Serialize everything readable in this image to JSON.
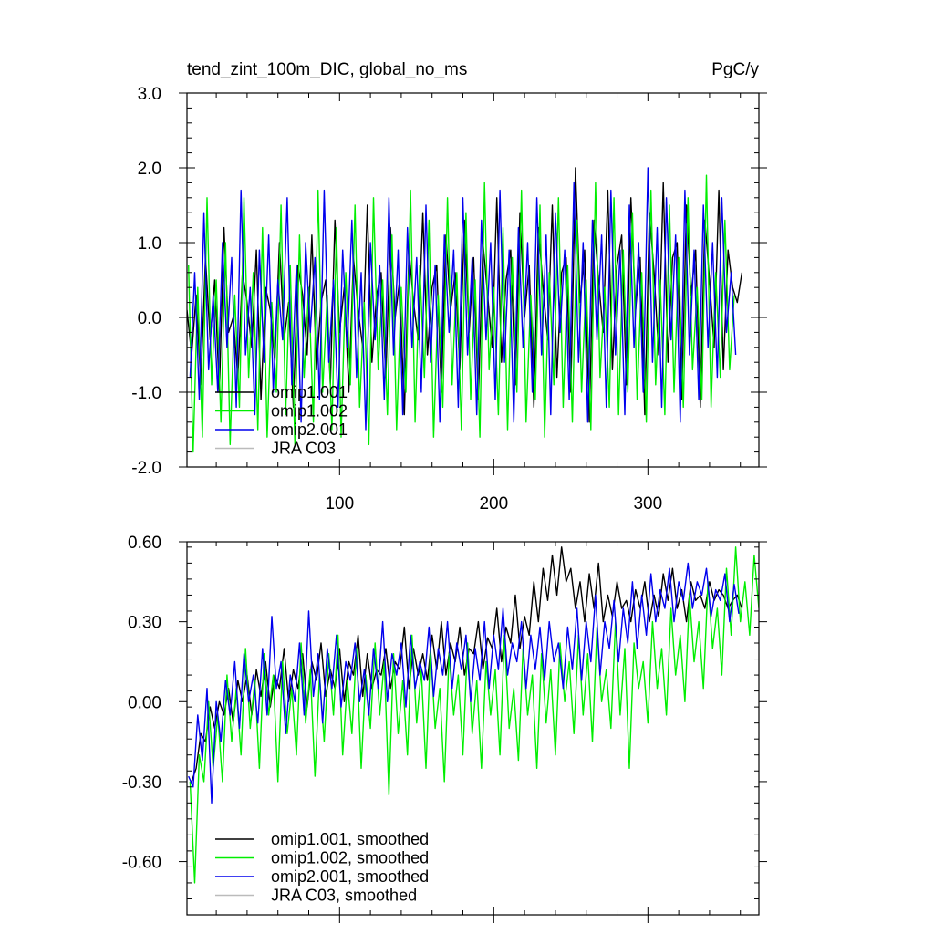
{
  "chart_data": [
    {
      "type": "line",
      "title": "tend_zint_100m_DIC, global_no_ms",
      "units": "PgC/y",
      "xlim": [
        1,
        372
      ],
      "ylim": [
        -2.0,
        3.0
      ],
      "x_ticks": [
        100,
        200,
        300
      ],
      "x_tick_labels": [
        "100",
        "200",
        "300"
      ],
      "y_ticks": [
        -2.0,
        -1.0,
        0.0,
        1.0,
        2.0,
        3.0
      ],
      "y_tick_labels": [
        "-2.0",
        "-1.0",
        "0.0",
        "1.0",
        "2.0",
        "3.0"
      ],
      "legend_position": "bottom-left",
      "series": [
        {
          "name": "omip1.001",
          "color": "#000000",
          "x_start": 1,
          "x_step": 3,
          "values": [
            0.1,
            -0.5,
            0.3,
            -0.9,
            0.8,
            -0.3,
            0.5,
            -1.0,
            1.2,
            -0.2,
            0.0,
            -0.8,
            0.6,
            0.2,
            -0.4,
            0.9,
            -1.1,
            0.4,
            0.1,
            -0.6,
            1.0,
            -0.3,
            0.2,
            -1.2,
            0.7,
            0.3,
            -0.5,
            1.1,
            -0.7,
            0.2,
            0.5,
            -0.9,
            1.3,
            -0.2,
            0.4,
            -1.0,
            0.8,
            0.1,
            -0.4,
            1.5,
            -0.6,
            0.3,
            0.6,
            -0.8,
            1.2,
            0.0,
            0.5,
            -1.3,
            0.9,
            0.2,
            -0.3,
            1.4,
            -0.5,
            0.4,
            0.7,
            -1.0,
            1.1,
            0.1,
            0.6,
            -0.7,
            1.3,
            -0.2,
            0.8,
            -1.1,
            1.0,
            0.3,
            -0.4,
            1.6,
            -0.6,
            0.5,
            0.9,
            -0.9,
            1.4,
            0.0,
            0.7,
            -1.2,
            1.2,
            0.4,
            -0.3,
            1.5,
            -0.8,
            0.6,
            0.8,
            -1.0,
            2.0,
            0.2,
            0.9,
            -1.4,
            1.3,
            0.5,
            -0.2,
            1.7,
            -0.7,
            0.7,
            1.1,
            -0.9,
            1.6,
            0.1,
            0.8,
            -1.3,
            1.4,
            0.6,
            -0.5,
            1.8,
            -0.6,
            0.8,
            1.0,
            -1.1,
            1.5,
            0.3,
            0.9,
            -1.2,
            1.3,
            0.5,
            -0.4,
            1.7,
            -0.7,
            0.9,
            0.4,
            0.2,
            0.6
          ]
        },
        {
          "name": "omip1.002",
          "color": "#00ee00",
          "x_start": 2,
          "x_step": 3,
          "values": [
            0.7,
            -1.8,
            0.4,
            -1.6,
            1.6,
            -0.9,
            0.5,
            -1.4,
            1.0,
            -1.7,
            0.3,
            -1.2,
            1.6,
            -0.8,
            0.6,
            -1.5,
            1.2,
            -1.6,
            0.2,
            -1.0,
            1.5,
            -1.3,
            0.7,
            -1.7,
            1.1,
            -0.8,
            0.4,
            -1.4,
            1.7,
            -1.0,
            0.3,
            -1.5,
            1.2,
            -1.6,
            0.6,
            -0.9,
            1.5,
            -1.2,
            0.2,
            -1.7,
            1.6,
            -0.7,
            0.5,
            -1.3,
            1.1,
            -1.5,
            0.4,
            -1.0,
            1.7,
            -1.4,
            0.7,
            -0.8,
            1.3,
            -1.6,
            0.3,
            -1.2,
            1.6,
            -0.9,
            0.6,
            -1.5,
            1.4,
            -1.1,
            0.5,
            -1.6,
            1.8,
            -0.7,
            0.4,
            -1.3,
            1.2,
            -1.5,
            0.8,
            -1.0,
            1.7,
            -1.4,
            0.3,
            -1.1,
            1.5,
            -1.6,
            0.6,
            -0.9,
            1.6,
            -1.2,
            0.7,
            -1.4,
            1.3,
            -1.0,
            0.5,
            -1.5,
            1.8,
            -0.8,
            0.4,
            -1.2,
            1.6,
            -1.3,
            0.9,
            -1.0,
            1.4,
            -1.1,
            0.6,
            -1.4,
            1.7,
            -0.9,
            0.5,
            -1.3,
            1.5,
            -1.0,
            0.8,
            -1.2,
            1.6,
            -0.7,
            0.4,
            -1.1,
            1.9,
            -1.2,
            0.6,
            -0.8,
            1.3,
            -0.7,
            0.3
          ]
        },
        {
          "name": "omip2.001",
          "color": "#0000ee",
          "x_start": 3,
          "x_step": 3,
          "values": [
            -0.8,
            0.6,
            -1.1,
            1.4,
            -0.7,
            0.3,
            -1.0,
            1.0,
            -0.4,
            0.8,
            -1.2,
            1.7,
            -0.5,
            0.4,
            -1.3,
            0.9,
            -0.6,
            1.1,
            -1.0,
            0.5,
            -0.3,
            1.6,
            -0.9,
            0.7,
            -1.4,
            1.0,
            -0.2,
            0.8,
            -1.1,
            1.7,
            -0.6,
            0.5,
            -1.2,
            0.9,
            -0.4,
            1.3,
            -0.8,
            0.6,
            -1.5,
            1.0,
            -0.3,
            0.7,
            -1.1,
            1.6,
            -0.5,
            0.9,
            -1.3,
            1.2,
            -0.4,
            0.8,
            -1.0,
            1.5,
            -0.6,
            0.7,
            -1.4,
            1.1,
            -0.2,
            0.9,
            -1.2,
            1.6,
            -0.5,
            0.8,
            -1.3,
            1.3,
            -0.3,
            1.0,
            -1.1,
            1.7,
            -0.6,
            0.9,
            -1.4,
            1.2,
            -0.4,
            1.0,
            -1.0,
            1.6,
            -0.5,
            1.1,
            -1.3,
            1.4,
            -0.2,
            0.9,
            -1.1,
            1.8,
            -0.6,
            1.0,
            -1.4,
            1.3,
            -0.3,
            1.1,
            -1.2,
            1.7,
            -0.5,
            0.9,
            -1.3,
            1.5,
            -0.4,
            1.0,
            -1.0,
            2.0,
            -0.6,
            1.2,
            -1.2,
            1.6,
            -0.3,
            1.1,
            -1.4,
            1.7,
            -0.5,
            0.9,
            -1.1,
            1.5,
            -0.4,
            1.0,
            -0.8,
            1.6,
            -0.2,
            0.6,
            -0.5
          ]
        },
        {
          "name": "JRA C03",
          "color": "#bbbbbb",
          "x_start": 1,
          "x_step": 3,
          "values": []
        }
      ]
    },
    {
      "type": "line",
      "title": "",
      "xlim": [
        1,
        372
      ],
      "ylim": [
        -0.8,
        0.6
      ],
      "x_ticks": [
        100,
        200,
        300
      ],
      "y_ticks": [
        -0.6,
        -0.3,
        0.0,
        0.3,
        0.6
      ],
      "y_tick_labels": [
        "-0.60",
        "-0.30",
        "0.00",
        "0.30",
        "0.60"
      ],
      "legend_position": "bottom-left",
      "series": [
        {
          "name": "omip1.001, smoothed",
          "color": "#000000",
          "x_start": 4,
          "x_step": 3,
          "values": [
            -0.3,
            -0.25,
            -0.12,
            -0.15,
            -0.02,
            -0.1,
            0.0,
            -0.05,
            0.05,
            -0.08,
            0.08,
            0.0,
            0.1,
            -0.05,
            0.12,
            0.02,
            0.15,
            -0.02,
            0.1,
            0.05,
            0.2,
            0.0,
            0.12,
            0.05,
            0.18,
            -0.02,
            0.15,
            0.08,
            0.22,
            0.02,
            0.12,
            0.05,
            0.2,
            0.0,
            0.15,
            0.1,
            0.25,
            0.02,
            0.18,
            0.05,
            0.12,
            0.1,
            0.2,
            0.05,
            0.15,
            0.12,
            0.28,
            0.05,
            0.2,
            0.1,
            0.18,
            0.08,
            0.25,
            0.12,
            0.3,
            0.1,
            0.22,
            0.15,
            0.28,
            0.1,
            0.2,
            0.18,
            0.3,
            0.12,
            0.24,
            0.2,
            0.35,
            0.15,
            0.28,
            0.22,
            0.4,
            0.2,
            0.32,
            0.25,
            0.45,
            0.3,
            0.5,
            0.38,
            0.55,
            0.4,
            0.58,
            0.45,
            0.5,
            0.35,
            0.45,
            0.3,
            0.48,
            0.35,
            0.52,
            0.3,
            0.4,
            0.32,
            0.45,
            0.35,
            0.38,
            0.3,
            0.42,
            0.35,
            0.45,
            0.3,
            0.4,
            0.32,
            0.48,
            0.38,
            0.5,
            0.35,
            0.42,
            0.3,
            0.45,
            0.38,
            0.4,
            0.35,
            0.45,
            0.38,
            0.42,
            0.4,
            0.35,
            0.38,
            0.4,
            0.35
          ]
        },
        {
          "name": "omip1.002, smoothed",
          "color": "#00ee00",
          "x_start": 3,
          "x_step": 3,
          "values": [
            -0.3,
            -0.68,
            -0.2,
            -0.3,
            0.0,
            -0.25,
            -0.05,
            -0.3,
            0.1,
            -0.15,
            0.05,
            -0.2,
            0.2,
            -0.1,
            0.08,
            -0.25,
            0.18,
            -0.05,
            0.1,
            -0.3,
            0.15,
            -0.12,
            0.05,
            -0.2,
            0.22,
            -0.08,
            0.12,
            -0.28,
            0.1,
            -0.15,
            0.18,
            -0.05,
            0.25,
            -0.2,
            0.08,
            -0.12,
            0.2,
            -0.25,
            0.1,
            -0.1,
            0.22,
            -0.05,
            0.15,
            -0.35,
            0.18,
            -0.12,
            0.08,
            -0.2,
            0.25,
            -0.08,
            0.12,
            -0.25,
            0.2,
            -0.1,
            0.05,
            -0.3,
            0.18,
            -0.05,
            0.1,
            -0.2,
            0.22,
            -0.12,
            0.08,
            -0.25,
            0.15,
            -0.05,
            0.12,
            -0.2,
            0.25,
            -0.1,
            0.05,
            -0.22,
            0.2,
            -0.05,
            0.1,
            -0.25,
            0.18,
            -0.08,
            0.12,
            -0.2,
            0.22,
            0.0,
            0.15,
            -0.12,
            0.25,
            -0.05,
            0.18,
            -0.15,
            0.28,
            0.0,
            0.12,
            -0.1,
            0.3,
            -0.05,
            0.2,
            -0.25,
            0.22,
            0.05,
            0.15,
            -0.08,
            0.3,
            0.05,
            0.2,
            -0.05,
            0.35,
            0.1,
            0.25,
            0.0,
            0.4,
            0.15,
            0.3,
            0.05,
            0.45,
            0.2,
            0.35,
            0.1,
            0.5,
            0.25,
            0.58,
            0.3,
            0.45,
            0.25,
            0.55,
            0.35,
            0.5,
            0.2,
            0.48,
            0.4
          ]
        },
        {
          "name": "omip2.001, smoothed",
          "color": "#0000ee",
          "x_start": 2,
          "x_step": 3,
          "values": [
            -0.28,
            -0.32,
            -0.05,
            -0.22,
            0.05,
            -0.38,
            0.0,
            -0.15,
            0.08,
            -0.05,
            0.15,
            -0.1,
            0.18,
            0.0,
            0.1,
            -0.08,
            0.2,
            -0.05,
            0.32,
            0.05,
            0.15,
            -0.12,
            0.1,
            0.0,
            0.22,
            -0.05,
            0.34,
            0.02,
            0.18,
            -0.08,
            0.2,
            0.05,
            0.25,
            -0.02,
            0.15,
            0.08,
            0.22,
            0.0,
            0.12,
            -0.05,
            0.2,
            0.05,
            0.3,
            0.0,
            0.18,
            0.1,
            0.22,
            -0.02,
            0.25,
            0.05,
            0.15,
            0.08,
            0.28,
            0.02,
            0.2,
            0.1,
            0.3,
            0.05,
            0.22,
            0.12,
            0.25,
            0.0,
            0.2,
            0.08,
            0.3,
            0.05,
            0.25,
            0.12,
            0.35,
            0.1,
            0.22,
            0.15,
            0.3,
            0.05,
            0.25,
            0.12,
            0.28,
            0.08,
            0.3,
            0.15,
            0.22,
            0.05,
            0.28,
            0.12,
            0.35,
            0.08,
            0.3,
            0.15,
            0.4,
            0.1,
            0.3,
            0.2,
            0.38,
            0.15,
            0.35,
            0.22,
            0.45,
            0.2,
            0.4,
            0.25,
            0.48,
            0.3,
            0.42,
            0.35,
            0.5,
            0.3,
            0.45,
            0.38,
            0.52,
            0.35,
            0.45,
            0.4,
            0.5,
            0.32,
            0.42,
            0.38,
            0.48,
            0.3,
            0.44,
            0.33
          ]
        },
        {
          "name": "JRA C03, smoothed",
          "color": "#bbbbbb",
          "x_start": 1,
          "x_step": 3,
          "values": []
        }
      ]
    }
  ]
}
